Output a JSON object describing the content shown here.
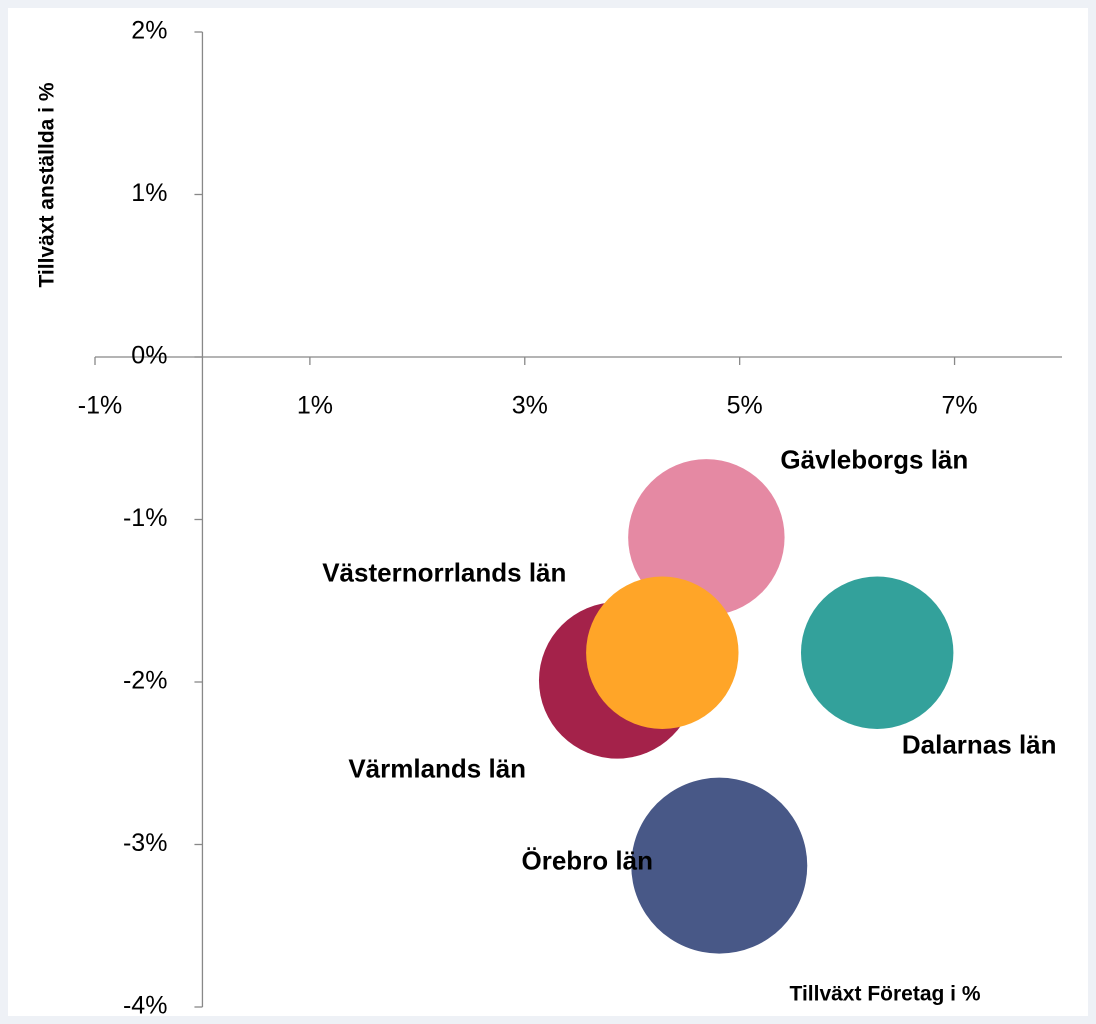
{
  "chart_data": {
    "type": "bubble",
    "x_label": "Tillväxt Företag i %",
    "y_label": "Tillväxt anställda i %",
    "xlim": [
      -1,
      8
    ],
    "ylim": [
      -4,
      2
    ],
    "xticks": [
      {
        "value": -1,
        "label": "-1%"
      },
      {
        "value": 1,
        "label": "1%"
      },
      {
        "value": 3,
        "label": "3%"
      },
      {
        "value": 5,
        "label": "5%"
      },
      {
        "value": 7,
        "label": "7%"
      }
    ],
    "yticks": [
      {
        "value": -4,
        "label": "-4%"
      },
      {
        "value": -3,
        "label": "-3%"
      },
      {
        "value": -2,
        "label": "-2%"
      },
      {
        "value": -1,
        "label": "-1%"
      },
      {
        "value": 0,
        "label": "0%"
      },
      {
        "value": 1,
        "label": "1%"
      },
      {
        "value": 2,
        "label": "2%"
      }
    ],
    "series": [
      {
        "name": "Gävleborgs län",
        "color": "#e589a3",
        "x": [
          4.69
        ],
        "values": [
          -1.11
        ],
        "sizes": [
          0.79
        ]
      },
      {
        "name": "Värmlands län",
        "color": "#a4224a",
        "x": [
          3.86
        ],
        "values": [
          -1.99
        ],
        "sizes": [
          0.79
        ]
      },
      {
        "name": "Västernorrlands län",
        "color": "#ffa528",
        "x": [
          4.28
        ],
        "values": [
          -1.82
        ],
        "sizes": [
          0.75
        ]
      },
      {
        "name": "Dalarnas län",
        "color": "#33a19b",
        "x": [
          6.28
        ],
        "values": [
          -1.82
        ],
        "sizes": [
          0.75
        ]
      },
      {
        "name": "Örebro län",
        "color": "#485887",
        "x": [
          4.81
        ],
        "values": [
          -3.13
        ],
        "sizes": [
          1.0
        ]
      }
    ]
  }
}
